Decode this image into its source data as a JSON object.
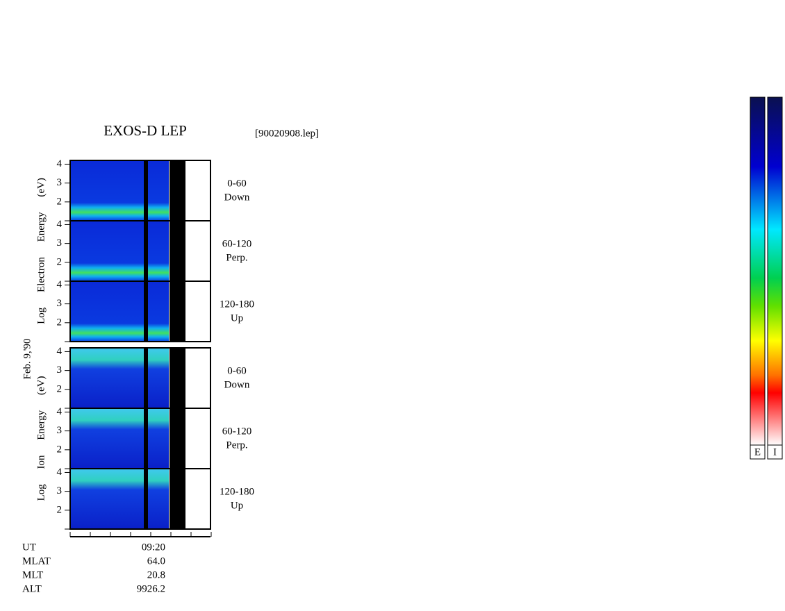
{
  "title": "EXOS-D LEP",
  "file": "[90020908.lep]",
  "date": "Feb. 9,'90",
  "ylim": [
    1,
    4.2
  ],
  "groups": [
    {
      "axis_label": "Log Electron Energy (eV)",
      "panels": [
        {
          "angle": "0-60",
          "direction": "Down",
          "yticks": [
            2,
            3,
            4
          ]
        },
        {
          "angle": "60-120",
          "direction": "Perp.",
          "yticks": [
            2,
            3,
            4
          ]
        },
        {
          "angle": "120-180",
          "direction": "Up",
          "yticks": [
            2,
            3,
            4
          ]
        }
      ]
    },
    {
      "axis_label": "Log Ion Energy (eV)",
      "panels": [
        {
          "angle": "0-60",
          "direction": "Down",
          "yticks": [
            2,
            3,
            4
          ]
        },
        {
          "angle": "60-120",
          "direction": "Perp.",
          "yticks": [
            2,
            3,
            4
          ]
        },
        {
          "angle": "120-180",
          "direction": "Up",
          "yticks": [
            2,
            3,
            4
          ]
        }
      ]
    }
  ],
  "ephemeris": {
    "labels": [
      "UT",
      "MLAT",
      "MLT",
      "ALT"
    ],
    "values": [
      "09:20",
      "64.0",
      "20.8",
      "9926.2"
    ]
  },
  "colorbars": [
    "E",
    "I"
  ]
}
